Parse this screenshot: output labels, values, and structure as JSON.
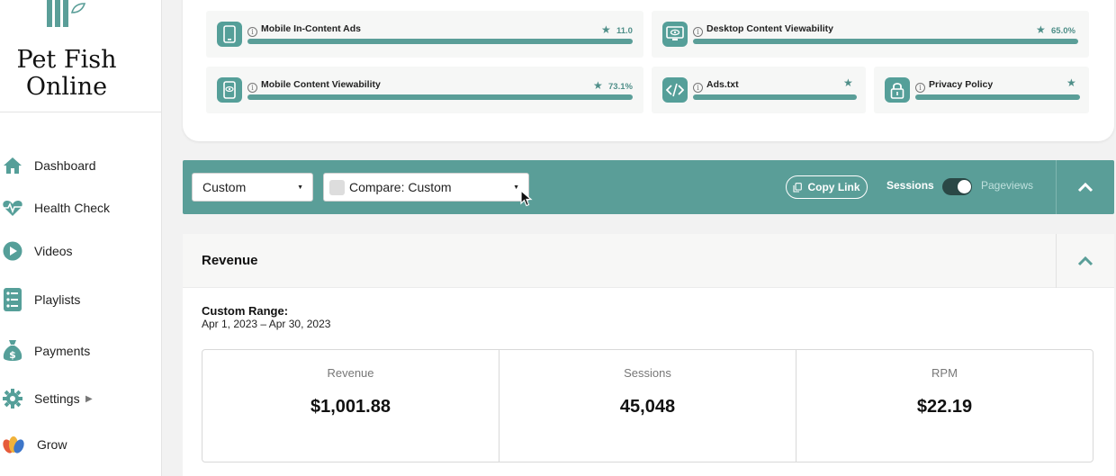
{
  "site": {
    "name_line1": "Pet Fish",
    "name_line2": "Online"
  },
  "sidebar": {
    "items": [
      {
        "label": "Dashboard",
        "icon": "home-icon"
      },
      {
        "label": "Health Check",
        "icon": "heart-pulse-icon"
      },
      {
        "label": "Videos",
        "icon": "play-icon"
      },
      {
        "label": "Playlists",
        "icon": "list-icon"
      },
      {
        "label": "Payments",
        "icon": "money-bag-icon"
      },
      {
        "label": "Settings",
        "icon": "gear-icon"
      },
      {
        "label": "Grow",
        "icon": "grow-icon"
      }
    ]
  },
  "metrics": [
    {
      "label": "Mobile In-Content Ads",
      "value": "11.0",
      "icon": "mobile-icon",
      "level": 1.0
    },
    {
      "label": "Desktop Content Viewability",
      "value": "65.0%",
      "icon": "desktop-eye-icon",
      "level": 1.0
    },
    {
      "label": "Mobile Content Viewability",
      "value": "73.1%",
      "icon": "mobile-eye-icon",
      "level": 1.0
    },
    {
      "label": "Ads.txt",
      "value": "",
      "icon": "code-icon",
      "level": 1.0
    },
    {
      "label": "Privacy Policy",
      "value": "",
      "icon": "lock-icon",
      "level": 1.0
    }
  ],
  "filters": {
    "range_select": "Custom",
    "compare_select": "Compare: Custom",
    "copy_link": "Copy Link",
    "toggle_left": "Sessions",
    "toggle_right": "Pageviews"
  },
  "revenue": {
    "title": "Revenue",
    "range_label": "Custom Range:",
    "range_dates": "Apr 1, 2023 – Apr 30, 2023",
    "stats": [
      {
        "label": "Revenue",
        "value": "$1,001.88"
      },
      {
        "label": "Sessions",
        "value": "45,048"
      },
      {
        "label": "RPM",
        "value": "$22.19"
      }
    ]
  },
  "colors": {
    "accent": "#5a9e98",
    "accent_dark": "#2a4846"
  }
}
